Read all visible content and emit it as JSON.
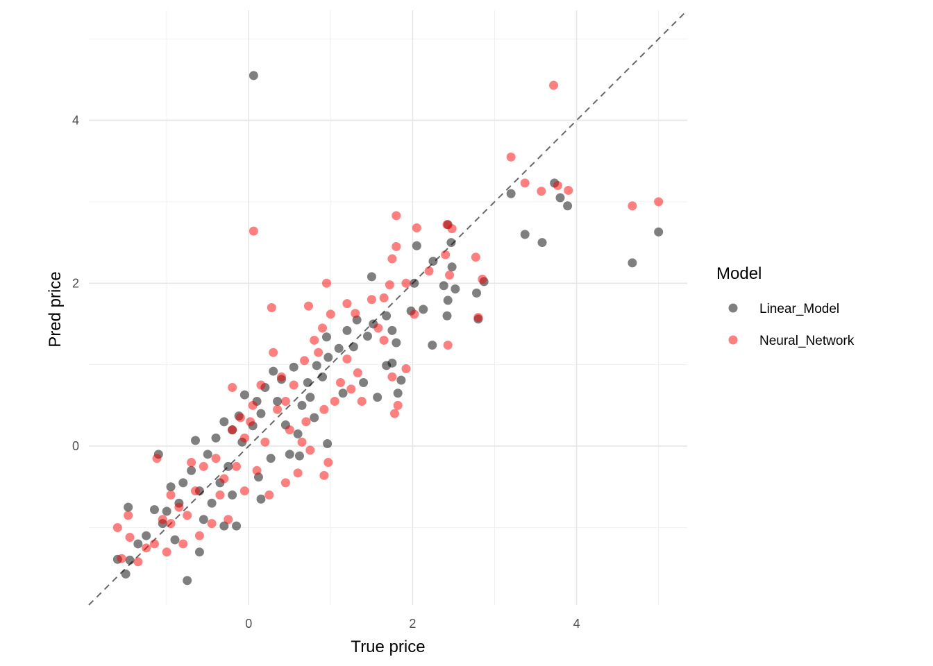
{
  "chart_data": {
    "type": "scatter",
    "title": "",
    "xlabel": "True price",
    "ylabel": "Pred price",
    "xlim": [
      -1.95,
      5.35
    ],
    "ylim": [
      -1.95,
      5.35
    ],
    "x_ticks": [
      0,
      2,
      4
    ],
    "y_ticks": [
      0,
      2,
      4
    ],
    "grid": true,
    "reference_line": {
      "slope": 1,
      "intercept": 0,
      "style": "dashed",
      "color": "#666666"
    },
    "legend": {
      "title": "Model",
      "position": "right"
    },
    "series": [
      {
        "name": "Linear_Model",
        "color": "#000000",
        "points": [
          [
            0.06,
            4.55
          ],
          [
            3.2,
            3.1
          ],
          [
            3.73,
            3.23
          ],
          [
            3.8,
            3.05
          ],
          [
            3.89,
            2.95
          ],
          [
            3.37,
            2.6
          ],
          [
            3.58,
            2.5
          ],
          [
            4.68,
            2.25
          ],
          [
            5.0,
            2.63
          ],
          [
            2.05,
            2.46
          ],
          [
            2.43,
            2.72
          ],
          [
            2.47,
            2.5
          ],
          [
            2.25,
            2.27
          ],
          [
            2.48,
            2.2
          ],
          [
            1.5,
            2.08
          ],
          [
            2.02,
            2.0
          ],
          [
            2.87,
            2.02
          ],
          [
            2.78,
            1.88
          ],
          [
            2.38,
            1.97
          ],
          [
            2.52,
            1.93
          ],
          [
            2.43,
            1.79
          ],
          [
            2.13,
            1.68
          ],
          [
            1.98,
            1.66
          ],
          [
            2.42,
            1.6
          ],
          [
            2.8,
            1.56
          ],
          [
            2.24,
            1.24
          ],
          [
            1.86,
            0.81
          ],
          [
            1.82,
            0.65
          ],
          [
            1.57,
            0.6
          ],
          [
            1.75,
            1.42
          ],
          [
            1.68,
            1.6
          ],
          [
            1.52,
            1.5
          ],
          [
            1.8,
            1.27
          ],
          [
            1.68,
            0.99
          ],
          [
            1.75,
            1.02
          ],
          [
            1.32,
            1.55
          ],
          [
            1.45,
            1.35
          ],
          [
            1.28,
            1.22
          ],
          [
            1.1,
            1.2
          ],
          [
            0.97,
            1.09
          ],
          [
            0.83,
            0.99
          ],
          [
            0.95,
            1.34
          ],
          [
            1.2,
            1.42
          ],
          [
            1.4,
            0.78
          ],
          [
            1.15,
            0.65
          ],
          [
            0.9,
            0.85
          ],
          [
            0.72,
            0.78
          ],
          [
            0.96,
            0.03
          ],
          [
            0.6,
            0.15
          ],
          [
            0.8,
            0.35
          ],
          [
            0.5,
            -0.1
          ],
          [
            0.62,
            -0.12
          ],
          [
            0.45,
            0.26
          ],
          [
            0.35,
            0.55
          ],
          [
            0.3,
            0.92
          ],
          [
            0.2,
            0.72
          ],
          [
            0.15,
            0.4
          ],
          [
            0.05,
            0.25
          ],
          [
            0.1,
            0.55
          ],
          [
            -0.05,
            0.63
          ],
          [
            -0.12,
            0.37
          ],
          [
            -0.2,
            0.2
          ],
          [
            -0.08,
            0.05
          ],
          [
            -0.25,
            -0.25
          ],
          [
            -0.3,
            0.3
          ],
          [
            -0.4,
            0.1
          ],
          [
            -0.5,
            -0.1
          ],
          [
            -0.65,
            0.07
          ],
          [
            -0.7,
            -0.3
          ],
          [
            -0.8,
            -0.45
          ],
          [
            -0.95,
            -0.5
          ],
          [
            -1.0,
            -0.8
          ],
          [
            -1.1,
            -0.1
          ],
          [
            -1.15,
            -0.78
          ],
          [
            -1.25,
            -1.1
          ],
          [
            -1.35,
            -1.2
          ],
          [
            -1.45,
            -1.4
          ],
          [
            -1.47,
            -0.75
          ],
          [
            -1.6,
            -1.39
          ],
          [
            -1.5,
            -1.57
          ],
          [
            -0.9,
            -1.15
          ],
          [
            -0.75,
            -1.65
          ],
          [
            -0.6,
            -1.3
          ],
          [
            -0.3,
            -0.98
          ],
          [
            -0.15,
            -0.98
          ],
          [
            -0.2,
            -0.6
          ],
          [
            0.15,
            -0.65
          ],
          [
            0.12,
            -0.38
          ],
          [
            0.27,
            -0.15
          ],
          [
            -0.45,
            -0.7
          ],
          [
            -0.55,
            -0.9
          ],
          [
            -0.85,
            -0.7
          ],
          [
            -1.05,
            -0.95
          ],
          [
            -0.35,
            -0.45
          ],
          [
            -0.6,
            -0.55
          ],
          [
            0.4,
            0.82
          ],
          [
            0.55,
            0.97
          ],
          [
            0.65,
            0.5
          ],
          [
            0.75,
            0.6
          ]
        ]
      },
      {
        "name": "Neural_Network",
        "color": "#ff0000",
        "points": [
          [
            3.72,
            4.43
          ],
          [
            3.2,
            3.55
          ],
          [
            3.37,
            3.23
          ],
          [
            3.57,
            3.13
          ],
          [
            3.77,
            3.2
          ],
          [
            3.9,
            3.14
          ],
          [
            4.68,
            2.95
          ],
          [
            5.0,
            3.0
          ],
          [
            0.06,
            2.64
          ],
          [
            1.8,
            2.83
          ],
          [
            2.05,
            2.68
          ],
          [
            2.42,
            2.72
          ],
          [
            2.48,
            2.67
          ],
          [
            2.4,
            2.35
          ],
          [
            1.75,
            2.3
          ],
          [
            1.8,
            2.45
          ],
          [
            1.92,
            2.0
          ],
          [
            2.2,
            2.15
          ],
          [
            2.45,
            2.1
          ],
          [
            2.85,
            2.05
          ],
          [
            2.77,
            2.32
          ],
          [
            2.43,
            1.24
          ],
          [
            2.8,
            1.58
          ],
          [
            2.02,
            1.62
          ],
          [
            1.92,
            0.95
          ],
          [
            1.75,
            0.85
          ],
          [
            1.82,
            0.5
          ],
          [
            1.78,
            0.4
          ],
          [
            1.38,
            0.55
          ],
          [
            1.65,
            1.3
          ],
          [
            1.58,
            1.45
          ],
          [
            1.5,
            1.8
          ],
          [
            1.65,
            1.82
          ],
          [
            1.72,
            1.98
          ],
          [
            0.95,
            2.0
          ],
          [
            1.0,
            1.62
          ],
          [
            0.73,
            1.72
          ],
          [
            0.8,
            1.3
          ],
          [
            0.9,
            1.45
          ],
          [
            1.2,
            1.75
          ],
          [
            1.3,
            1.63
          ],
          [
            1.2,
            1.07
          ],
          [
            1.33,
            0.9
          ],
          [
            1.05,
            0.55
          ],
          [
            0.92,
            0.45
          ],
          [
            0.7,
            0.3
          ],
          [
            0.5,
            0.2
          ],
          [
            0.65,
            0.05
          ],
          [
            0.75,
            -0.05
          ],
          [
            0.97,
            -0.2
          ],
          [
            0.92,
            -0.36
          ],
          [
            0.6,
            -0.33
          ],
          [
            0.45,
            -0.45
          ],
          [
            0.25,
            -0.6
          ],
          [
            0.28,
            1.7
          ],
          [
            0.3,
            1.15
          ],
          [
            0.15,
            0.75
          ],
          [
            0.05,
            0.5
          ],
          [
            -0.1,
            0.35
          ],
          [
            -0.2,
            0.72
          ],
          [
            -0.05,
            0.1
          ],
          [
            -0.15,
            -0.25
          ],
          [
            -0.3,
            -0.4
          ],
          [
            -0.4,
            -0.15
          ],
          [
            -0.55,
            -0.25
          ],
          [
            -0.65,
            -0.55
          ],
          [
            -0.75,
            -0.85
          ],
          [
            -0.85,
            -0.75
          ],
          [
            -0.95,
            -0.95
          ],
          [
            -1.05,
            -0.9
          ],
          [
            -1.15,
            -1.2
          ],
          [
            -1.25,
            -1.25
          ],
          [
            -1.35,
            -1.42
          ],
          [
            -1.45,
            -1.12
          ],
          [
            -1.47,
            -0.85
          ],
          [
            -1.6,
            -1.0
          ],
          [
            -1.55,
            -1.38
          ],
          [
            -1.12,
            -0.15
          ],
          [
            -0.95,
            -0.6
          ],
          [
            -0.6,
            -1.1
          ],
          [
            -0.45,
            -0.95
          ],
          [
            -0.25,
            -0.9
          ],
          [
            -0.05,
            -0.55
          ],
          [
            0.1,
            -0.3
          ],
          [
            0.2,
            0.05
          ],
          [
            0.35,
            0.45
          ],
          [
            0.4,
            0.85
          ],
          [
            0.55,
            0.75
          ],
          [
            0.68,
            1.05
          ],
          [
            0.85,
            1.15
          ],
          [
            1.12,
            0.78
          ],
          [
            1.25,
            0.7
          ],
          [
            -0.7,
            -0.2
          ],
          [
            -0.35,
            -0.6
          ],
          [
            -0.8,
            -1.2
          ],
          [
            -1.0,
            -1.3
          ],
          [
            -0.2,
            0.2
          ],
          [
            0.02,
            0.3
          ],
          [
            0.45,
            0.55
          ]
        ]
      }
    ]
  }
}
